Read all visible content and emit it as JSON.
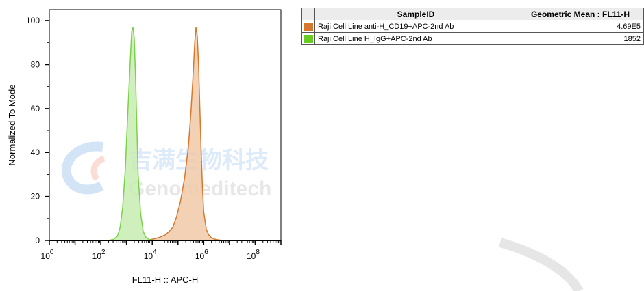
{
  "chart_data": {
    "type": "area",
    "xlabel": "FL11-H :: APC-H",
    "ylabel": "Normalized To Mode",
    "x_scale": "log10",
    "xlim": [
      0.0,
      9.0
    ],
    "ylim": [
      0,
      105
    ],
    "x_ticks": [
      0,
      2,
      4,
      6,
      8
    ],
    "x_tick_base": "10",
    "y_ticks": [
      0,
      20,
      40,
      60,
      80,
      100
    ],
    "series": [
      {
        "name": "Raji Cell Line anti-H_CD19+APC-2nd Ab",
        "color": "#d6792e",
        "fill": "#f0c9a8",
        "x_log10": [
          3.7,
          3.9,
          4.1,
          4.3,
          4.5,
          4.65,
          4.8,
          4.95,
          5.1,
          5.25,
          5.4,
          5.5,
          5.6,
          5.65,
          5.7,
          5.75,
          5.8,
          5.85,
          5.9,
          5.95,
          6.0,
          6.1,
          6.2,
          6.3,
          6.45,
          6.6,
          6.8,
          7.0
        ],
        "y": [
          0,
          0.3,
          0.8,
          1.5,
          2.5,
          4,
          6,
          11,
          18,
          28,
          42,
          58,
          78,
          90,
          97,
          93,
          80,
          60,
          40,
          24,
          13,
          5,
          2.5,
          1.2,
          0.5,
          0.2,
          0,
          0
        ]
      },
      {
        "name": "Raji Cell Line H_IgG+APC-2nd Ab",
        "color": "#7ad14a",
        "fill": "#c7ecb0",
        "x_log10": [
          2.3,
          2.5,
          2.65,
          2.75,
          2.85,
          2.95,
          3.05,
          3.15,
          3.2,
          3.25,
          3.3,
          3.35,
          3.4,
          3.45,
          3.55,
          3.65,
          3.75,
          3.9,
          4.1
        ],
        "y": [
          0,
          0.5,
          2,
          6,
          15,
          32,
          58,
          83,
          95,
          97,
          92,
          75,
          52,
          30,
          12,
          4,
          1.5,
          0.3,
          0
        ]
      }
    ],
    "legend": {
      "headers": [
        "SampleID",
        "Geometric Mean : FL11-H"
      ],
      "rows": [
        {
          "sample": "Raji Cell Line anti-H_CD19+APC-2nd Ab",
          "value": "4.69E5",
          "color": "#d6792e"
        },
        {
          "sample": "Raji Cell Line H_IgG+APC-2nd Ab",
          "value": "1852",
          "color": "#66cc22"
        }
      ]
    }
  },
  "watermark": {
    "text_cn": "吉满生物科技",
    "text_en": "Genomeditech"
  }
}
